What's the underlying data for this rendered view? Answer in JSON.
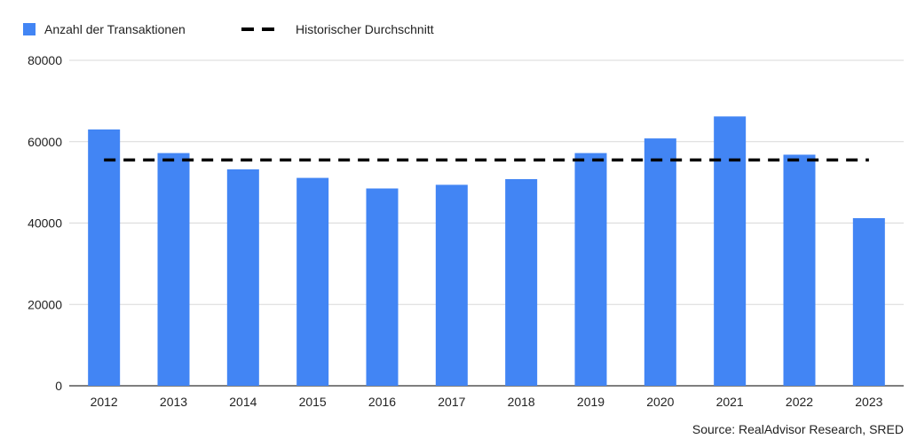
{
  "chart_data": {
    "type": "bar",
    "categories": [
      "2012",
      "2013",
      "2014",
      "2015",
      "2016",
      "2017",
      "2018",
      "2019",
      "2020",
      "2021",
      "2022",
      "2023"
    ],
    "series": [
      {
        "name": "Anzahl der Transaktionen",
        "type": "bar",
        "color": "#4285f4",
        "values": [
          63000,
          57200,
          53200,
          51100,
          48500,
          49400,
          50800,
          57200,
          60800,
          66200,
          56800,
          41200
        ]
      },
      {
        "name": "Historischer Durchschnitt",
        "type": "line",
        "style": "dashed",
        "color": "#000000",
        "value": 55500
      }
    ],
    "y_ticks": [
      "0",
      "20000",
      "40000",
      "60000",
      "80000"
    ],
    "ylim": [
      0,
      80000
    ],
    "grid": true,
    "legend_position": "top-left",
    "source": "Source: RealAdvisor Research, SRED"
  }
}
